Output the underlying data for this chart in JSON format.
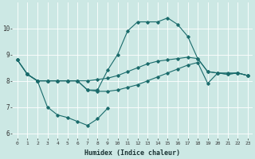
{
  "xlabel": "Humidex (Indice chaleur)",
  "background_color": "#cce8e4",
  "line_color": "#1a6b6b",
  "xlim": [
    -0.5,
    23.5
  ],
  "ylim": [
    5.8,
    11.0
  ],
  "yticks": [
    6,
    7,
    8,
    9,
    10
  ],
  "xticks": [
    0,
    1,
    2,
    3,
    4,
    5,
    6,
    7,
    8,
    9,
    10,
    11,
    12,
    13,
    14,
    15,
    16,
    17,
    18,
    19,
    20,
    21,
    22,
    23
  ],
  "line1_x": [
    0,
    1,
    2,
    3,
    4,
    5,
    6,
    7,
    8,
    9,
    10,
    11,
    12,
    13,
    14,
    15,
    16,
    17,
    18,
    19,
    20,
    21,
    22,
    23
  ],
  "line1_y": [
    8.8,
    8.25,
    8.0,
    8.0,
    8.0,
    8.0,
    8.0,
    8.0,
    8.05,
    8.1,
    8.2,
    8.35,
    8.5,
    8.65,
    8.75,
    8.8,
    8.85,
    8.9,
    8.85,
    8.35,
    8.3,
    8.3,
    8.3,
    8.2
  ],
  "line2_x": [
    0,
    1,
    2,
    3,
    4,
    5,
    6,
    7,
    8,
    9,
    10,
    11,
    12,
    13,
    14,
    15,
    16,
    17,
    18,
    19,
    20,
    21,
    22,
    23
  ],
  "line2_y": [
    8.8,
    8.25,
    8.0,
    8.0,
    8.0,
    8.0,
    8.0,
    7.65,
    7.65,
    8.4,
    9.0,
    9.9,
    10.25,
    10.25,
    10.25,
    10.4,
    10.15,
    9.7,
    8.85,
    8.35,
    8.3,
    8.25,
    8.3,
    8.2
  ],
  "line3_x": [
    0,
    1,
    2,
    3,
    4,
    5,
    6,
    7,
    8,
    9,
    10,
    11,
    12,
    13,
    14,
    15,
    16,
    17,
    18,
    19,
    20,
    21,
    22,
    23
  ],
  "line3_y": [
    8.8,
    8.25,
    8.0,
    8.0,
    8.0,
    8.0,
    8.0,
    7.65,
    7.6,
    7.6,
    7.65,
    7.75,
    7.85,
    8.0,
    8.15,
    8.3,
    8.45,
    8.6,
    8.7,
    7.9,
    8.3,
    8.25,
    8.3,
    8.2
  ],
  "line4_x": [
    1,
    2,
    3,
    4,
    5,
    6,
    7,
    8,
    9
  ],
  "line4_y": [
    8.25,
    8.0,
    7.0,
    6.7,
    6.6,
    6.45,
    6.3,
    6.55,
    6.95
  ]
}
